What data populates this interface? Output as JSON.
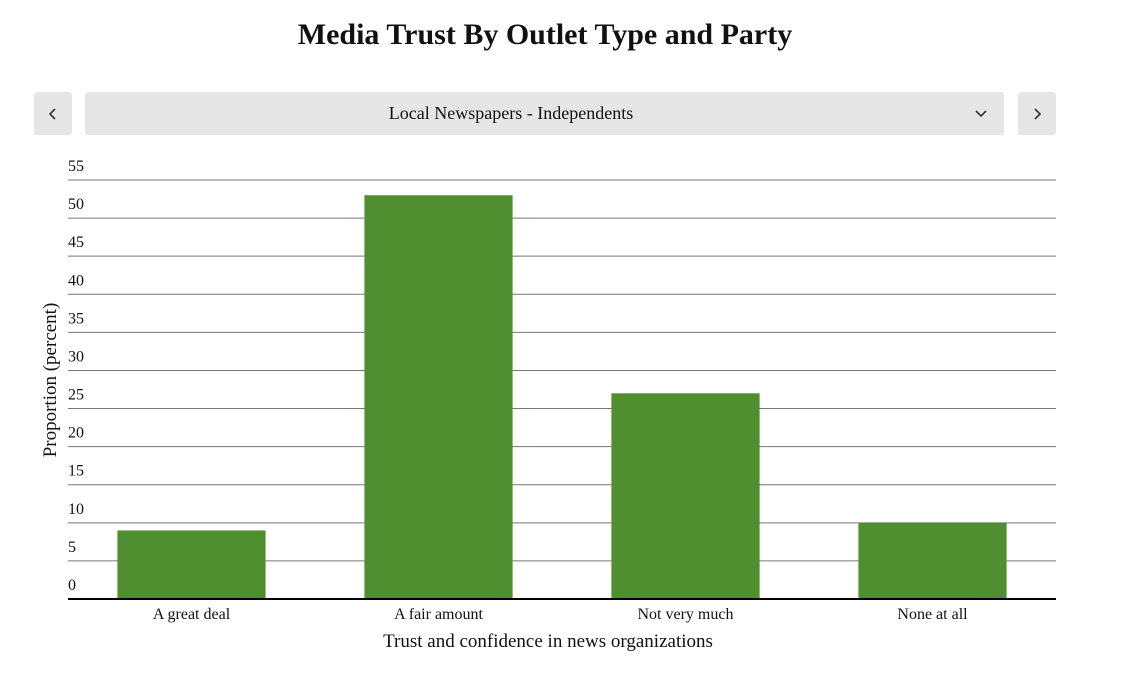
{
  "chart_data": {
    "type": "bar",
    "title": "Media Trust By Outlet Type and Party",
    "selector": "Local Newspapers - Independents",
    "categories": [
      "A great deal",
      "A fair amount",
      "Not very much",
      "None at all"
    ],
    "values": [
      9,
      53,
      27,
      10
    ],
    "color": "#4f8f2f",
    "xlabel": "Trust and confidence in news organizations",
    "ylabel": "Proportion (percent)",
    "ylim": [
      0,
      55
    ],
    "yticks": [
      0,
      5,
      10,
      15,
      20,
      25,
      30,
      35,
      40,
      45,
      50,
      55
    ],
    "grid": true
  }
}
